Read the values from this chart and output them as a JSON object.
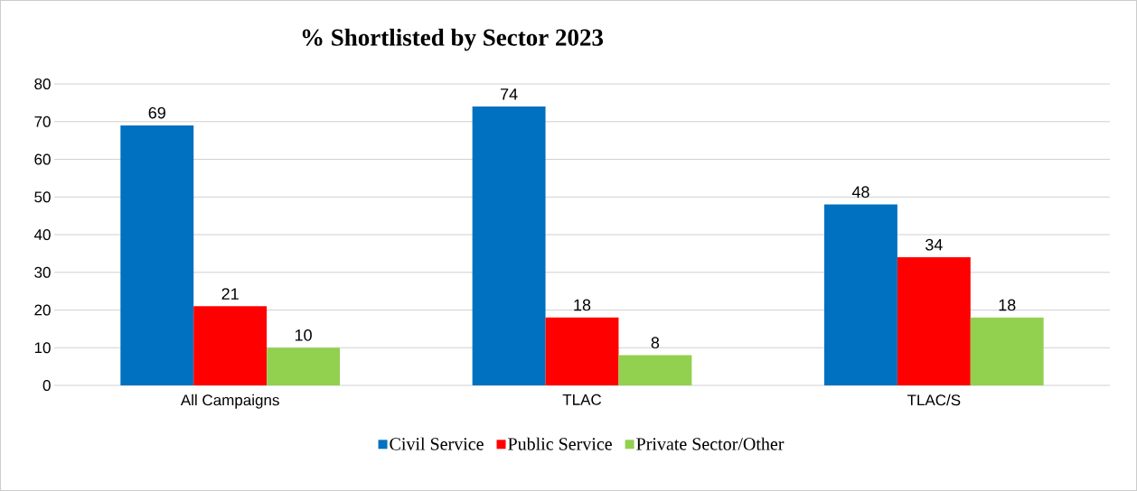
{
  "chart_data": {
    "type": "bar",
    "title": "% Shortlisted by Sector 2023",
    "categories": [
      "All Campaigns",
      "TLAC",
      "TLAC/S"
    ],
    "series": [
      {
        "name": "Civil Service",
        "color": "#0070c0",
        "values": [
          69,
          74,
          48
        ]
      },
      {
        "name": "Public Service",
        "color": "#ff0000",
        "values": [
          21,
          18,
          34
        ]
      },
      {
        "name": "Private Sector/Other",
        "color": "#92d050",
        "values": [
          10,
          8,
          18
        ]
      }
    ],
    "ylim": [
      0,
      80
    ],
    "yticks": [
      0,
      10,
      20,
      30,
      40,
      50,
      60,
      70,
      80
    ],
    "grid": "y",
    "legend": "bottom",
    "data_labels": true
  }
}
